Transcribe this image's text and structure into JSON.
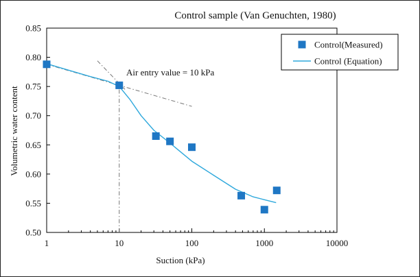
{
  "chart_data": {
    "type": "scatter",
    "title": "Control sample (Van Genuchten, 1980)",
    "xlabel": "Suction (kPa)",
    "ylabel": "Volumetric  water content",
    "xscale": "log",
    "xlim": [
      1,
      10000
    ],
    "ylim": [
      0.5,
      0.85
    ],
    "x_ticks": [
      1,
      10,
      100,
      1000,
      10000
    ],
    "x_tick_labels": [
      "1",
      "10",
      "100",
      "1000",
      "10000"
    ],
    "y_ticks": [
      0.5,
      0.55,
      0.6,
      0.65,
      0.7,
      0.75,
      0.8,
      0.85
    ],
    "y_tick_labels": [
      "0.50",
      "0.55",
      "0.60",
      "0.65",
      "0.70",
      "0.75",
      "0.80",
      "0.85"
    ],
    "grid": false,
    "legend_position": "top-right",
    "series": [
      {
        "name": "Control(Measured)",
        "kind": "markers",
        "marker": "square",
        "color": "#1f77c4",
        "points": [
          {
            "x": 1,
            "y": 0.788
          },
          {
            "x": 10,
            "y": 0.752
          },
          {
            "x": 32,
            "y": 0.665
          },
          {
            "x": 50,
            "y": 0.656
          },
          {
            "x": 100,
            "y": 0.646
          },
          {
            "x": 480,
            "y": 0.563
          },
          {
            "x": 1000,
            "y": 0.539
          },
          {
            "x": 1480,
            "y": 0.572
          }
        ]
      },
      {
        "name": "Control (Equation)",
        "kind": "line",
        "color": "#2ea8dc",
        "points": [
          {
            "x": 1,
            "y": 0.789
          },
          {
            "x": 2,
            "y": 0.778
          },
          {
            "x": 4,
            "y": 0.767
          },
          {
            "x": 7,
            "y": 0.759
          },
          {
            "x": 10,
            "y": 0.75
          },
          {
            "x": 14,
            "y": 0.728
          },
          {
            "x": 20,
            "y": 0.7
          },
          {
            "x": 30,
            "y": 0.675
          },
          {
            "x": 50,
            "y": 0.653
          },
          {
            "x": 100,
            "y": 0.622
          },
          {
            "x": 200,
            "y": 0.598
          },
          {
            "x": 400,
            "y": 0.574
          },
          {
            "x": 700,
            "y": 0.561
          },
          {
            "x": 1000,
            "y": 0.556
          },
          {
            "x": 1450,
            "y": 0.551
          }
        ]
      }
    ],
    "annotations": [
      {
        "text": "Air entry value = 10 kPa",
        "x": 10.5,
        "y": 0.775
      }
    ],
    "guide_lines": [
      {
        "style": "dash-dot",
        "color": "#777777",
        "from": {
          "x": 10,
          "y": 0.5
        },
        "to": {
          "x": 10,
          "y": 0.752
        }
      },
      {
        "style": "dash-dot",
        "color": "#777777",
        "from": {
          "x": 5,
          "y": 0.794
        },
        "to": {
          "x": 12,
          "y": 0.745
        }
      },
      {
        "style": "dash-dot",
        "color": "#777777",
        "from": {
          "x": 1,
          "y": 0.788
        },
        "to": {
          "x": 100,
          "y": 0.716
        }
      }
    ]
  }
}
